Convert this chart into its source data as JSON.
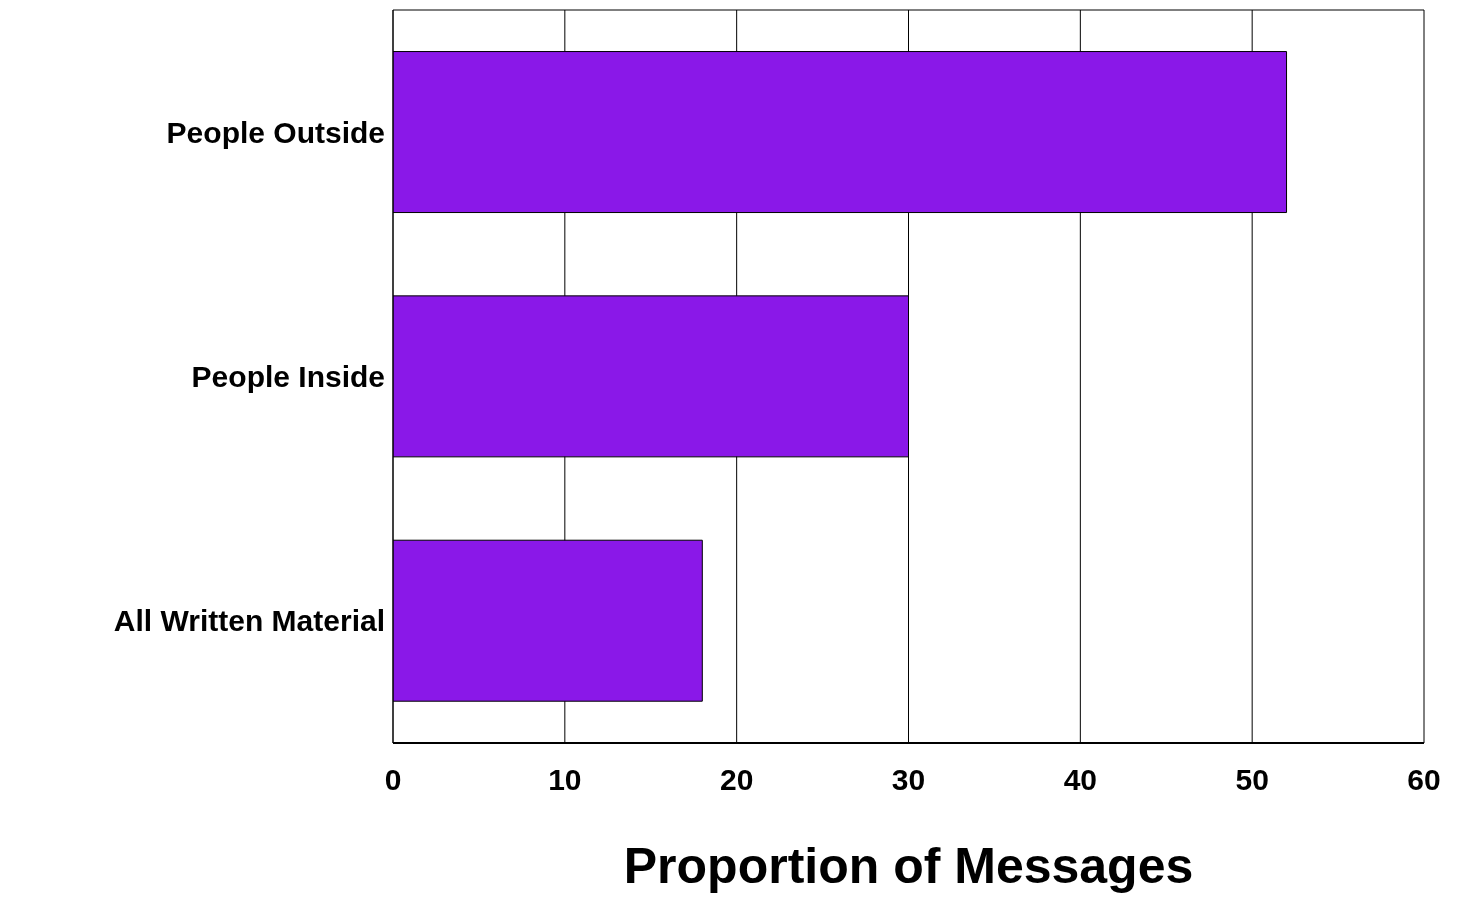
{
  "chart_data": {
    "type": "bar",
    "orientation": "horizontal",
    "categories": [
      "People Outside",
      "People Inside",
      "All Written Material"
    ],
    "values": [
      52,
      30,
      18
    ],
    "color": "#8a18e8",
    "xlabel": "Proportion of Messages",
    "xlim": [
      0,
      60
    ],
    "xticks": [
      0,
      10,
      20,
      30,
      40,
      50,
      60
    ],
    "grid": "x"
  }
}
